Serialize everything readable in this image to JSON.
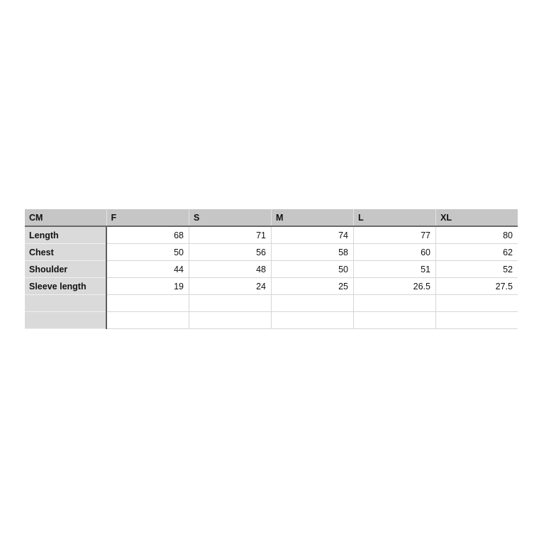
{
  "table": {
    "header": [
      "CM",
      "F",
      "S",
      "M",
      "L",
      "XL"
    ],
    "rows": [
      {
        "label": "Length",
        "values": [
          "68",
          "71",
          "74",
          "77",
          "80"
        ]
      },
      {
        "label": "Chest",
        "values": [
          "50",
          "56",
          "58",
          "60",
          "62"
        ]
      },
      {
        "label": "Shoulder",
        "values": [
          "44",
          "48",
          "50",
          "51",
          "52"
        ]
      },
      {
        "label": "Sleeve length",
        "values": [
          "19",
          "24",
          "25",
          "26.5",
          "27.5"
        ]
      },
      {
        "label": "",
        "values": [
          "",
          "",
          "",
          "",
          ""
        ]
      },
      {
        "label": "",
        "values": [
          "",
          "",
          "",
          "",
          ""
        ]
      }
    ]
  },
  "colors": {
    "header_bg": "#c6c6c6",
    "label_bg": "#dadada",
    "grid": "#d6d6d6"
  }
}
